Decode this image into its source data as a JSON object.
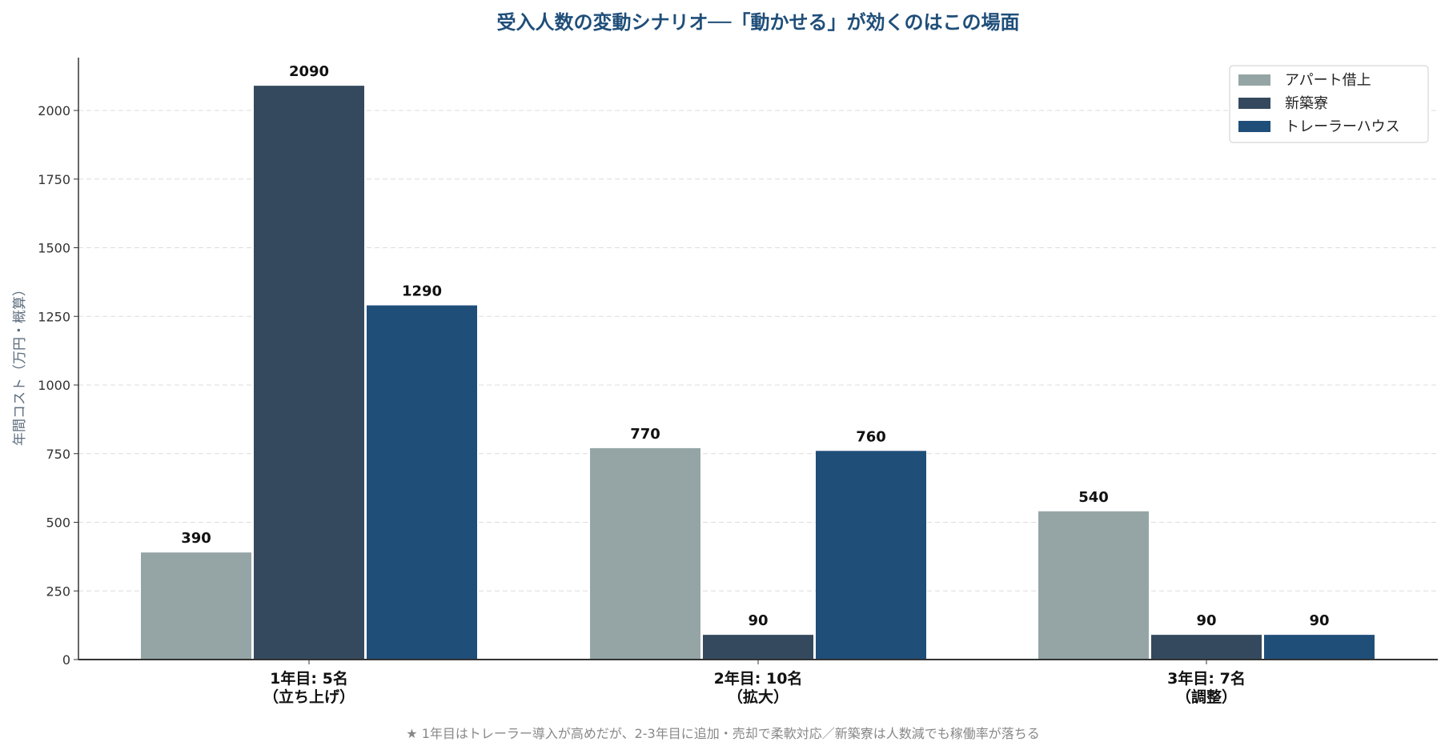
{
  "chart_data": {
    "type": "bar",
    "title": "受入人数の変動シナリオ──「動かせる」が効くのはこの場面",
    "ylabel": "年間コスト（万円・概算）",
    "xlabel": "",
    "categories": [
      [
        "1年目: 5名",
        "（立ち上げ）"
      ],
      [
        "2年目: 10名",
        "（拡大）"
      ],
      [
        "3年目: 7名",
        "（調整）"
      ]
    ],
    "series": [
      {
        "name": "アパート借上",
        "values": [
          390,
          770,
          540
        ],
        "color": "#95a5a6"
      },
      {
        "name": "新築寮",
        "values": [
          2090,
          90,
          90
        ],
        "color": "#34495e"
      },
      {
        "name": "トレーラーハウス",
        "values": [
          1290,
          760,
          90
        ],
        "color": "#1f4e79"
      }
    ],
    "ylim": [
      0,
      2200
    ],
    "yticks": [
      0,
      250,
      500,
      750,
      1000,
      1250,
      1500,
      1750,
      2000
    ],
    "grid": true,
    "legend": "top-right",
    "footnote": "★ 1年目はトレーラー導入が高めだが、2-3年目に追加・売却で柔軟対応／新築寮は人数減でも稼働率が落ちる",
    "title_color": "#1f4e79"
  }
}
